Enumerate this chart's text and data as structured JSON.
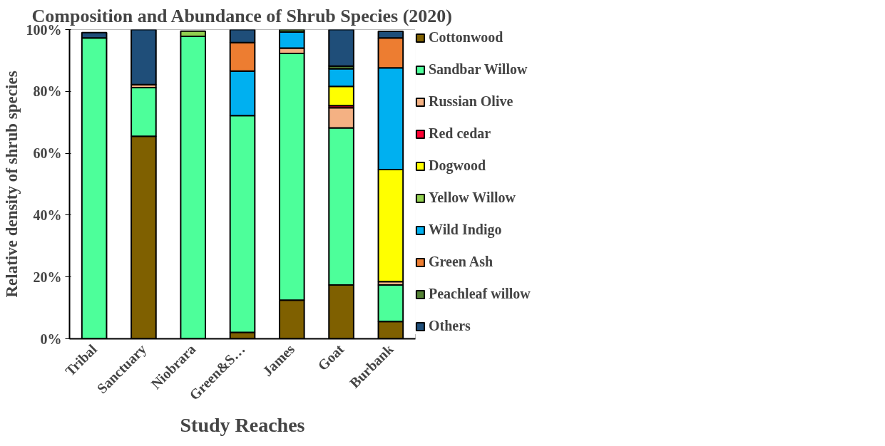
{
  "chart_data": {
    "type": "bar",
    "stacked": true,
    "title": "Composition and Abundance of Shrub Species (2020)",
    "xlabel": "Study Reaches",
    "ylabel": "Relative density of shrub species",
    "categories": [
      "Tribal",
      "Sanctuary",
      "Niobrara",
      "Green&S…",
      "James",
      "Goat",
      "Burbank"
    ],
    "ylim": [
      0,
      100
    ],
    "yticks": [
      {
        "value": 0,
        "label": "0%"
      },
      {
        "value": 20,
        "label": "20%"
      },
      {
        "value": 40,
        "label": "40%"
      },
      {
        "value": 60,
        "label": "60%"
      },
      {
        "value": 80,
        "label": "80%"
      },
      {
        "value": 100,
        "label": "100%"
      }
    ],
    "grid": false,
    "legend": "right",
    "series": [
      {
        "name": "Cottonwood",
        "color": "#7f6000",
        "values": [
          null,
          65.5,
          null,
          2.1,
          12.5,
          17.4,
          5.6
        ]
      },
      {
        "name": "Sandbar Willow",
        "color": "#4dff9a",
        "values": [
          97.3,
          15.7,
          97.8,
          70.1,
          79.8,
          50.8,
          11.8
        ]
      },
      {
        "name": "Russian Olive",
        "color": "#f4b183",
        "values": [
          null,
          1.0,
          0,
          0,
          1.7,
          6.5,
          1.1
        ]
      },
      {
        "name": "Red cedar",
        "color": "#ff0033",
        "values": [
          0,
          0,
          0,
          0,
          0,
          0.7,
          null
        ]
      },
      {
        "name": "Dogwood",
        "color": "#ffff00",
        "values": [
          0,
          0,
          0,
          0,
          0,
          6.2,
          36.2
        ]
      },
      {
        "name": "Yellow Willow",
        "color": "#92d050",
        "values": [
          0,
          0,
          1.7,
          0,
          0,
          0,
          0
        ]
      },
      {
        "name": "Wild Indigo",
        "color": "#00b0f0",
        "values": [
          0,
          0,
          0,
          14.4,
          5.2,
          5.7,
          32.9
        ]
      },
      {
        "name": "Green Ash",
        "color": "#ed7d31",
        "values": [
          0,
          0,
          0,
          9.2,
          0,
          0,
          9.7
        ]
      },
      {
        "name": "Peachleaf willow",
        "color": "#548235",
        "values": [
          0,
          0,
          0,
          0,
          0.8,
          0.9,
          0
        ]
      },
      {
        "name": "Others",
        "color": "#1f4e79",
        "values": [
          1.7,
          17.8,
          0,
          4.2,
          0,
          11.8,
          2.1
        ]
      }
    ]
  }
}
